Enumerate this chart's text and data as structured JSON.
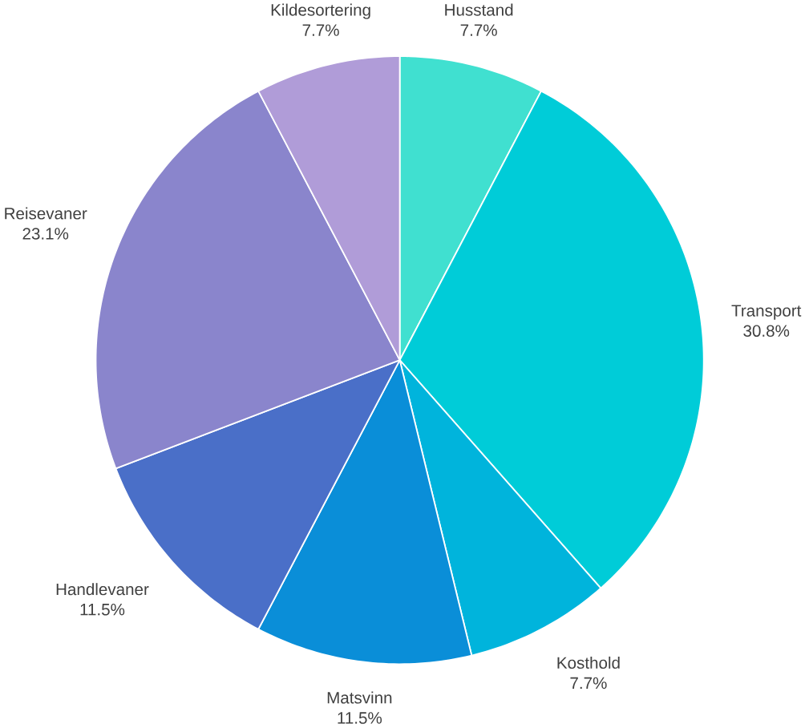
{
  "chart_data": {
    "type": "pie",
    "categories": [
      "Husstand",
      "Transport",
      "Kosthold",
      "Matsvinn",
      "Handlevaner",
      "Reisevaner",
      "Kildesortering"
    ],
    "values": [
      7.7,
      30.8,
      7.7,
      11.5,
      11.5,
      23.1,
      7.7
    ],
    "value_labels": [
      "7.7%",
      "30.8%",
      "7.7%",
      "11.5%",
      "11.5%",
      "23.1%",
      "7.7%"
    ],
    "colors": [
      "#40e0d0",
      "#00ccd8",
      "#00b4dc",
      "#0a8ed8",
      "#4a6fc8",
      "#8a85cc",
      "#b09cd8"
    ]
  }
}
